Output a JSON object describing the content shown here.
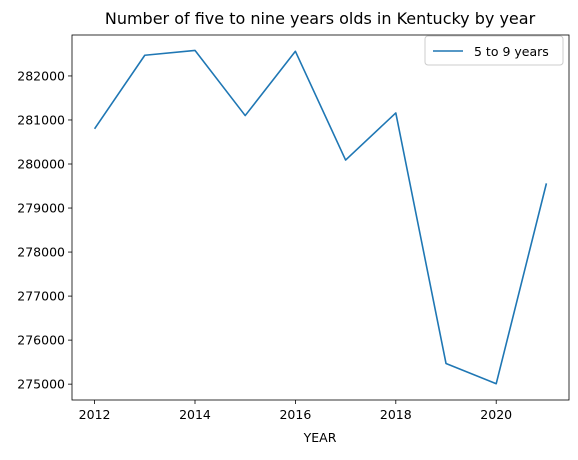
{
  "chart_data": {
    "type": "line",
    "title": "Number of five to nine years olds in Kentucky by year",
    "xlabel": "YEAR",
    "ylabel": "",
    "x": [
      2012,
      2013,
      2014,
      2015,
      2016,
      2017,
      2018,
      2019,
      2020,
      2021
    ],
    "xticks": [
      2012,
      2014,
      2016,
      2018,
      2020
    ],
    "yticks": [
      275000,
      276000,
      277000,
      278000,
      279000,
      280000,
      281000,
      282000
    ],
    "xlim": [
      2011.55,
      2021.45
    ],
    "ylim": [
      274640,
      282930
    ],
    "grid": false,
    "legend_position": "top-right",
    "series": [
      {
        "name": "5 to 9 years",
        "color": "#1f77b4",
        "values": [
          280800,
          282470,
          282580,
          281100,
          282560,
          280090,
          281160,
          275470,
          275010,
          279560
        ]
      }
    ]
  }
}
